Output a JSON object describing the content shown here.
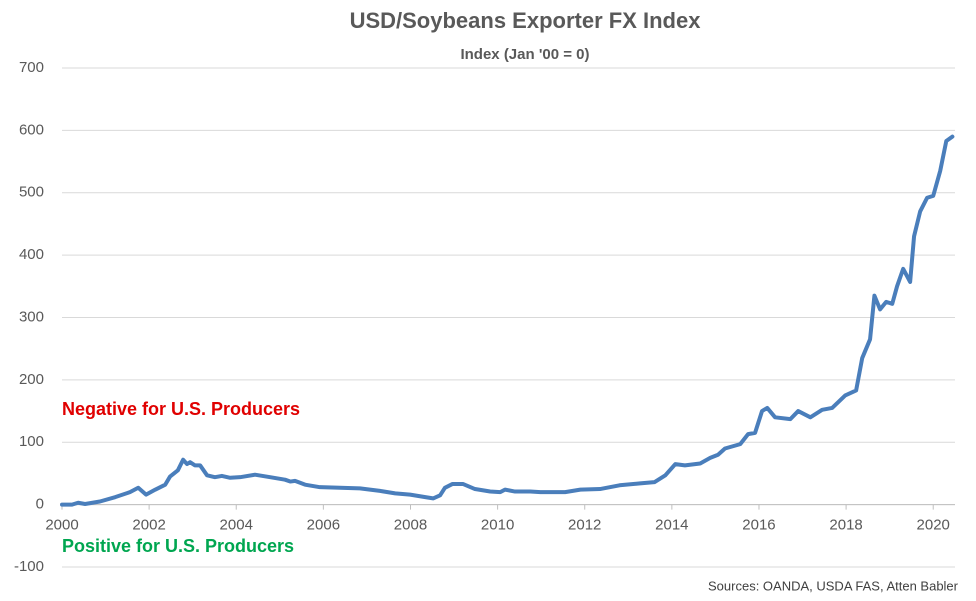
{
  "chart_data": {
    "type": "line",
    "title": "USD/Soybeans Exporter FX Index",
    "subtitle": "Index (Jan '00 = 0)",
    "source": "Sources: OANDA, USDA FAS, Atten Babler",
    "annotations": [
      {
        "text": "Negative for U.S. Producers",
        "color": "#e00000"
      },
      {
        "text": "Positive for U.S. Producers",
        "color": "#00a650"
      }
    ],
    "xlim": [
      2000,
      2020.5
    ],
    "xticks": [
      2000,
      2002,
      2004,
      2006,
      2008,
      2010,
      2012,
      2014,
      2016,
      2018,
      2020
    ],
    "ylim": [
      -100,
      700
    ],
    "yticks": [
      -100,
      0,
      100,
      200,
      300,
      400,
      500,
      600,
      700
    ],
    "grid": true,
    "x": [
      2000,
      2000.23,
      2000.37,
      2000.53,
      2000.87,
      2001.22,
      2001.56,
      2001.75,
      2001.93,
      2002.14,
      2002.37,
      2002.48,
      2002.66,
      2002.78,
      2002.87,
      2002.94,
      2003.05,
      2003.17,
      2003.33,
      2003.51,
      2003.67,
      2003.86,
      2004.09,
      2004.43,
      2004.78,
      2005.12,
      2005.24,
      2005.35,
      2005.58,
      2005.92,
      2006.38,
      2006.84,
      2007.3,
      2007.65,
      2007.99,
      2008.34,
      2008.52,
      2008.68,
      2008.79,
      2008.96,
      2009.21,
      2009.48,
      2009.83,
      2010.06,
      2010.17,
      2010.4,
      2010.75,
      2010.98,
      2011.55,
      2011.9,
      2012.35,
      2012.8,
      2013.27,
      2013.6,
      2013.85,
      2014.08,
      2014.3,
      2014.65,
      2014.88,
      2015.06,
      2015.22,
      2015.57,
      2015.75,
      2015.91,
      2016.07,
      2016.19,
      2016.37,
      2016.72,
      2016.9,
      2017.18,
      2017.45,
      2017.68,
      2017.98,
      2018.23,
      2018.37,
      2018.55,
      2018.65,
      2018.78,
      2018.92,
      2019.06,
      2019.17,
      2019.31,
      2019.47,
      2019.56,
      2019.7,
      2019.86,
      2020.0,
      2020.16,
      2020.3,
      2020.44
    ],
    "series": [
      {
        "name": "USD/Soybeans Exporter FX Index",
        "color": "#4a7ebb",
        "values": [
          0,
          0,
          3,
          1,
          5,
          12,
          20,
          27,
          16,
          24,
          32,
          45,
          55,
          72,
          65,
          68,
          63,
          63,
          47,
          44,
          46,
          43,
          44,
          48,
          44,
          40,
          37,
          38,
          32,
          28,
          27,
          26,
          22,
          18,
          16,
          12,
          10,
          15,
          27,
          33,
          33,
          25,
          21,
          20,
          24,
          21,
          21,
          20,
          20,
          24,
          25,
          31,
          34,
          36,
          47,
          65,
          63,
          66,
          75,
          80,
          90,
          97,
          113,
          115,
          150,
          155,
          140,
          137,
          150,
          140,
          152,
          155,
          175,
          183,
          235,
          265,
          335,
          313,
          325,
          322,
          350,
          378,
          357,
          430,
          470,
          492,
          495,
          535,
          583,
          590
        ]
      }
    ]
  }
}
